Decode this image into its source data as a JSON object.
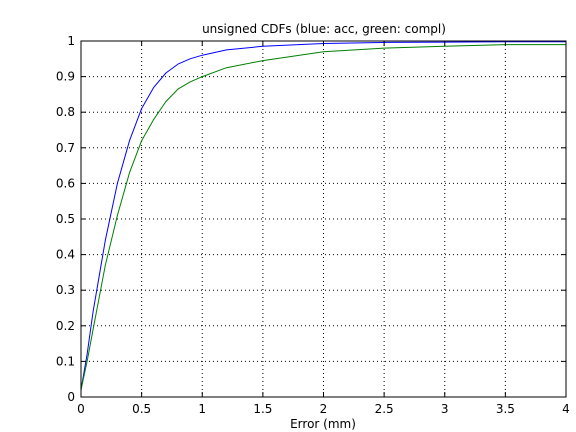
{
  "chart_data": {
    "type": "line",
    "title": "unsigned CDFs (blue: acc, green: compl)",
    "xlabel": "Error (mm)",
    "ylabel": "",
    "xlim": [
      0,
      4
    ],
    "ylim": [
      0,
      1
    ],
    "grid": true,
    "x_ticks": [
      0,
      0.5,
      1,
      1.5,
      2,
      2.5,
      3,
      3.5,
      4
    ],
    "x_tick_labels": [
      "0",
      "0.5",
      "1",
      "1.5",
      "2",
      "2.5",
      "3",
      "3.5",
      "4"
    ],
    "y_ticks": [
      0,
      0.1,
      0.2,
      0.3,
      0.4,
      0.5,
      0.6,
      0.7,
      0.8,
      0.9,
      1
    ],
    "y_tick_labels": [
      "0",
      "0.1",
      "0.2",
      "0.3",
      "0.4",
      "0.5",
      "0.6",
      "0.7",
      "0.8",
      "0.9",
      "1"
    ],
    "series": [
      {
        "color": "#0000ff",
        "x": [
          0,
          0.05,
          0.1,
          0.15,
          0.2,
          0.3,
          0.4,
          0.5,
          0.6,
          0.7,
          0.8,
          0.9,
          1.0,
          1.2,
          1.5,
          2.0,
          2.5,
          3.0,
          3.5,
          4.0
        ],
        "y": [
          0.02,
          0.12,
          0.24,
          0.34,
          0.44,
          0.6,
          0.72,
          0.81,
          0.87,
          0.91,
          0.935,
          0.95,
          0.96,
          0.975,
          0.985,
          0.993,
          0.996,
          0.997,
          0.998,
          0.998
        ]
      },
      {
        "color": "#007f00",
        "x": [
          0,
          0.05,
          0.1,
          0.15,
          0.2,
          0.3,
          0.4,
          0.5,
          0.6,
          0.7,
          0.8,
          0.9,
          1.0,
          1.2,
          1.5,
          2.0,
          2.5,
          3.0,
          3.5,
          4.0
        ],
        "y": [
          0.02,
          0.1,
          0.19,
          0.28,
          0.37,
          0.51,
          0.63,
          0.72,
          0.78,
          0.83,
          0.865,
          0.885,
          0.9,
          0.925,
          0.945,
          0.97,
          0.98,
          0.985,
          0.99,
          0.99
        ]
      }
    ]
  }
}
